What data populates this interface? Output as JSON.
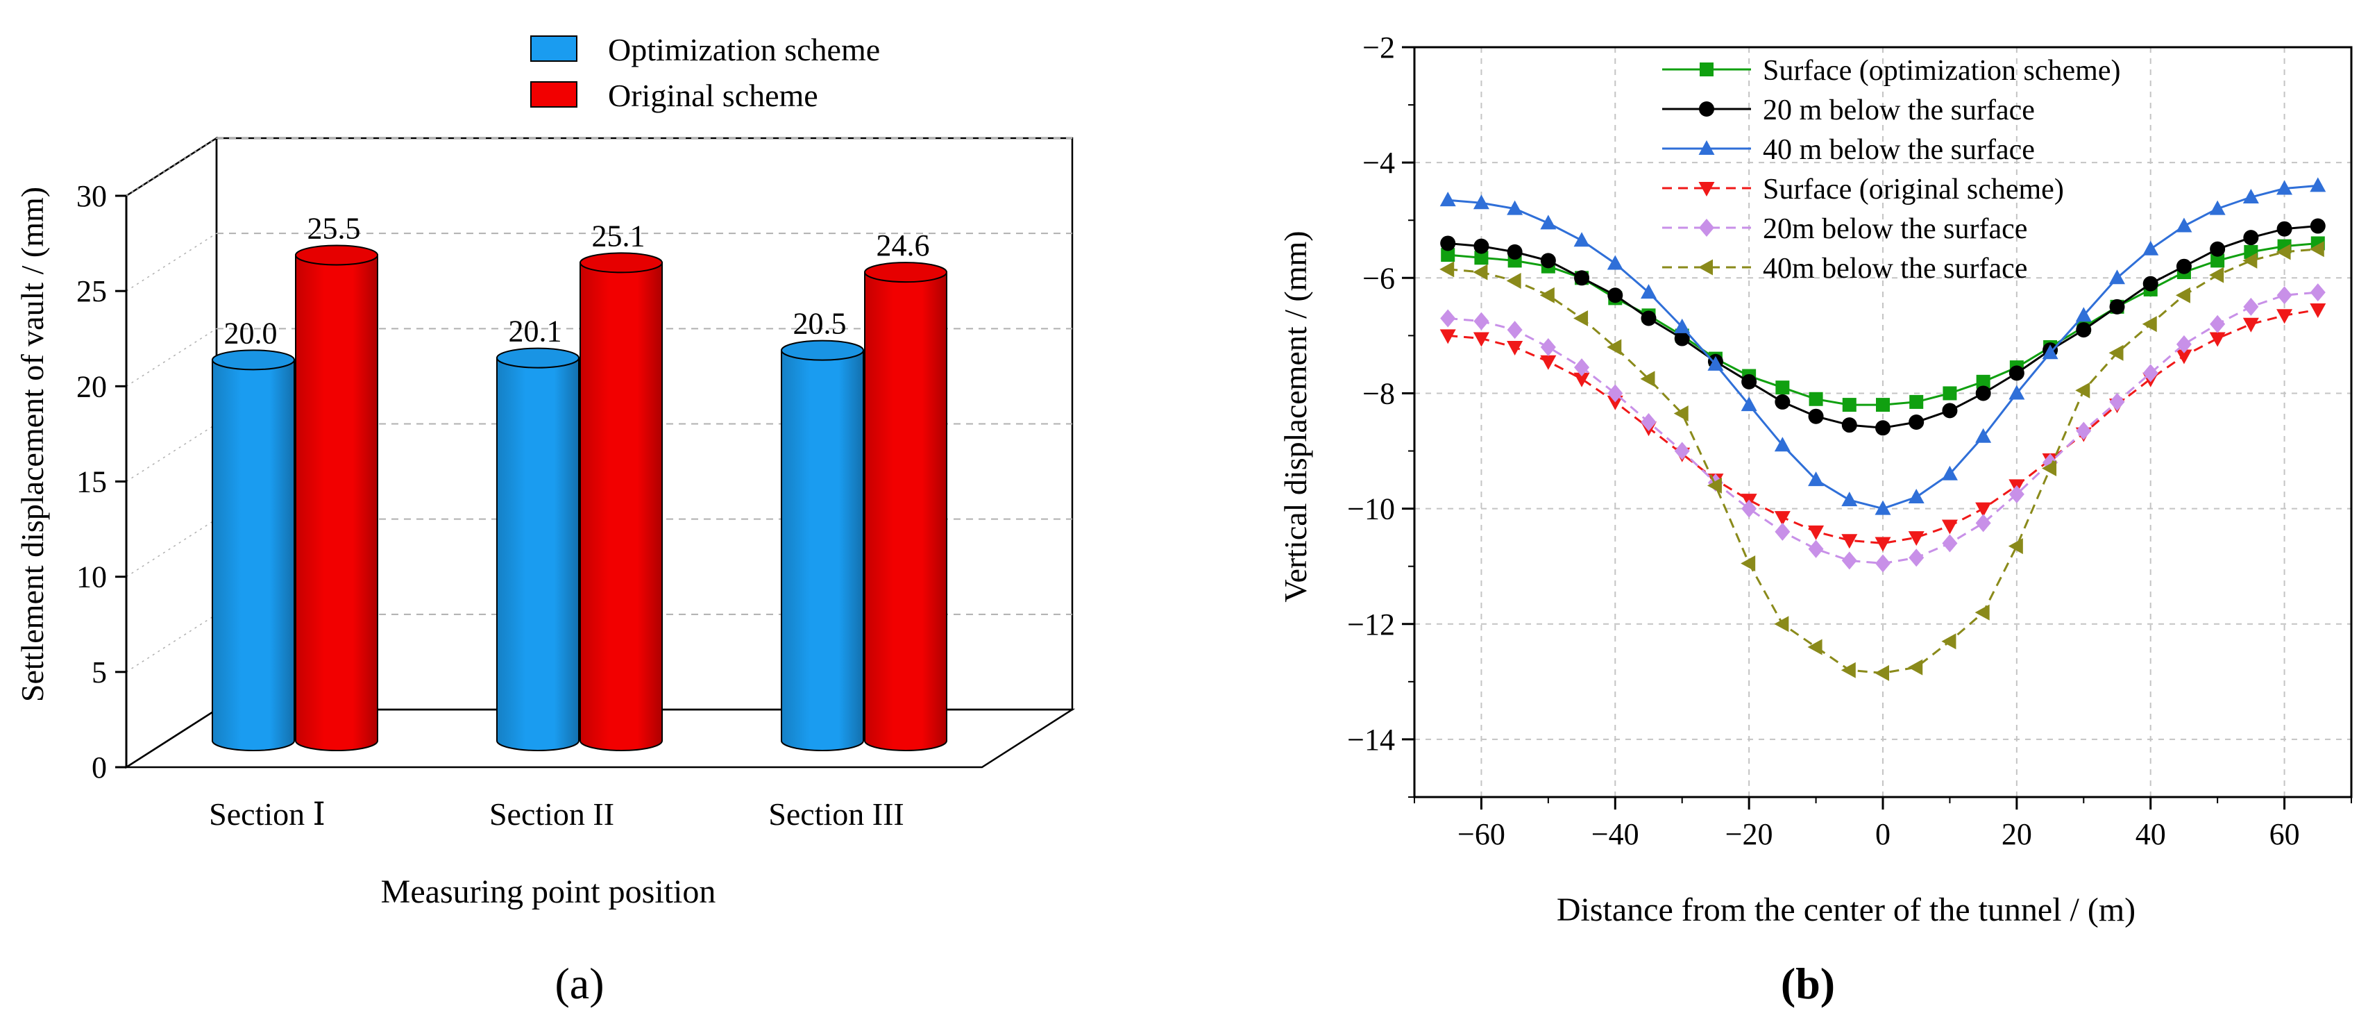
{
  "panel_a": {
    "label": "(a)",
    "chart_data": {
      "type": "bar",
      "categories": [
        "Section Ⅰ",
        "Section II",
        "Section III"
      ],
      "series": [
        {
          "name": "Optimization scheme",
          "color": "#1a9cf0",
          "values": [
            20.0,
            20.1,
            20.5
          ],
          "labels": [
            "20.0",
            "20.1",
            "20.5"
          ]
        },
        {
          "name": "Original scheme",
          "color": "#f20000",
          "values": [
            25.5,
            25.1,
            24.6
          ],
          "labels": [
            "25.5",
            "25.1",
            "24.6"
          ]
        }
      ],
      "xlabel": "Measuring point position",
      "ylabel": "Settlement displacement of vault / (mm)",
      "ylim": [
        0,
        30
      ],
      "yticks": [
        "0",
        "5",
        "10",
        "15",
        "20",
        "25",
        "30"
      ],
      "grid": true,
      "legend_position": "top",
      "style": "3d-cylinder"
    }
  },
  "panel_b": {
    "label": "(b)",
    "chart_data": {
      "type": "line",
      "xlabel": "Distance from the center of the tunnel / (m)",
      "ylabel": "Vertical displacement / (mm)",
      "xlim": [
        -70,
        70
      ],
      "ylim": [
        -15,
        -2
      ],
      "xticks": [
        "−60",
        "−40",
        "−20",
        "0",
        "20",
        "40",
        "60"
      ],
      "yticks": [
        "−2",
        "−4",
        "−6",
        "−8",
        "−10",
        "−12",
        "−14"
      ],
      "grid": true,
      "legend_position": "top-right",
      "x": [
        -65,
        -60,
        -55,
        -50,
        -45,
        -40,
        -35,
        -30,
        -25,
        -20,
        -15,
        -10,
        -5,
        0,
        5,
        10,
        15,
        20,
        25,
        30,
        35,
        40,
        45,
        50,
        55,
        60,
        65
      ],
      "series": [
        {
          "name": "Surface (optimization scheme)",
          "color": "#10a010",
          "marker": "square",
          "dash": "solid",
          "values": [
            -5.6,
            -5.65,
            -5.7,
            -5.8,
            -6.0,
            -6.35,
            -6.65,
            -7.0,
            -7.4,
            -7.7,
            -7.9,
            -8.1,
            -8.2,
            -8.2,
            -8.15,
            -8.0,
            -7.8,
            -7.55,
            -7.2,
            -6.85,
            -6.5,
            -6.2,
            -5.9,
            -5.7,
            -5.55,
            -5.45,
            -5.4
          ]
        },
        {
          "name": "20 m below the surface",
          "color": "#000000",
          "marker": "circle",
          "dash": "solid",
          "values": [
            -5.4,
            -5.45,
            -5.55,
            -5.7,
            -6.0,
            -6.3,
            -6.7,
            -7.05,
            -7.45,
            -7.8,
            -8.15,
            -8.4,
            -8.55,
            -8.6,
            -8.5,
            -8.3,
            -8.0,
            -7.65,
            -7.25,
            -6.9,
            -6.5,
            -6.1,
            -5.8,
            -5.5,
            -5.3,
            -5.15,
            -5.1
          ]
        },
        {
          "name": "40 m below the surface",
          "color": "#2f6fd8",
          "marker": "triangle-up",
          "dash": "solid",
          "values": [
            -4.65,
            -4.7,
            -4.8,
            -5.05,
            -5.35,
            -5.75,
            -6.25,
            -6.85,
            -7.5,
            -8.2,
            -8.9,
            -9.5,
            -9.85,
            -10.0,
            -9.8,
            -9.4,
            -8.75,
            -8.0,
            -7.3,
            -6.65,
            -6.0,
            -5.5,
            -5.1,
            -4.8,
            -4.6,
            -4.45,
            -4.4
          ]
        },
        {
          "name": "Surface (original scheme)",
          "color": "#f01818",
          "marker": "triangle-down",
          "dash": "dashed",
          "values": [
            -7.0,
            -7.05,
            -7.2,
            -7.45,
            -7.75,
            -8.15,
            -8.6,
            -9.05,
            -9.5,
            -9.85,
            -10.15,
            -10.4,
            -10.55,
            -10.6,
            -10.5,
            -10.3,
            -10.0,
            -9.6,
            -9.15,
            -8.7,
            -8.2,
            -7.75,
            -7.35,
            -7.05,
            -6.8,
            -6.65,
            -6.55
          ]
        },
        {
          "name": "20m below the surface",
          "color": "#c890e8",
          "marker": "diamond",
          "dash": "dashed",
          "values": [
            -6.7,
            -6.75,
            -6.9,
            -7.2,
            -7.55,
            -8.0,
            -8.5,
            -9.0,
            -9.55,
            -10.0,
            -10.4,
            -10.7,
            -10.9,
            -10.95,
            -10.85,
            -10.6,
            -10.25,
            -9.75,
            -9.2,
            -8.65,
            -8.15,
            -7.65,
            -7.15,
            -6.8,
            -6.5,
            -6.3,
            -6.25
          ]
        },
        {
          "name": "40m below the surface",
          "color": "#8a8a1a",
          "marker": "triangle-left",
          "dash": "dashed",
          "values": [
            -5.85,
            -5.9,
            -6.05,
            -6.3,
            -6.7,
            -7.2,
            -7.75,
            -8.35,
            -9.6,
            -10.95,
            -12.0,
            -12.4,
            -12.8,
            -12.85,
            -12.75,
            -12.3,
            -11.8,
            -10.65,
            -9.3,
            -7.95,
            -7.3,
            -6.8,
            -6.3,
            -5.95,
            -5.7,
            -5.55,
            -5.5
          ]
        }
      ]
    }
  }
}
